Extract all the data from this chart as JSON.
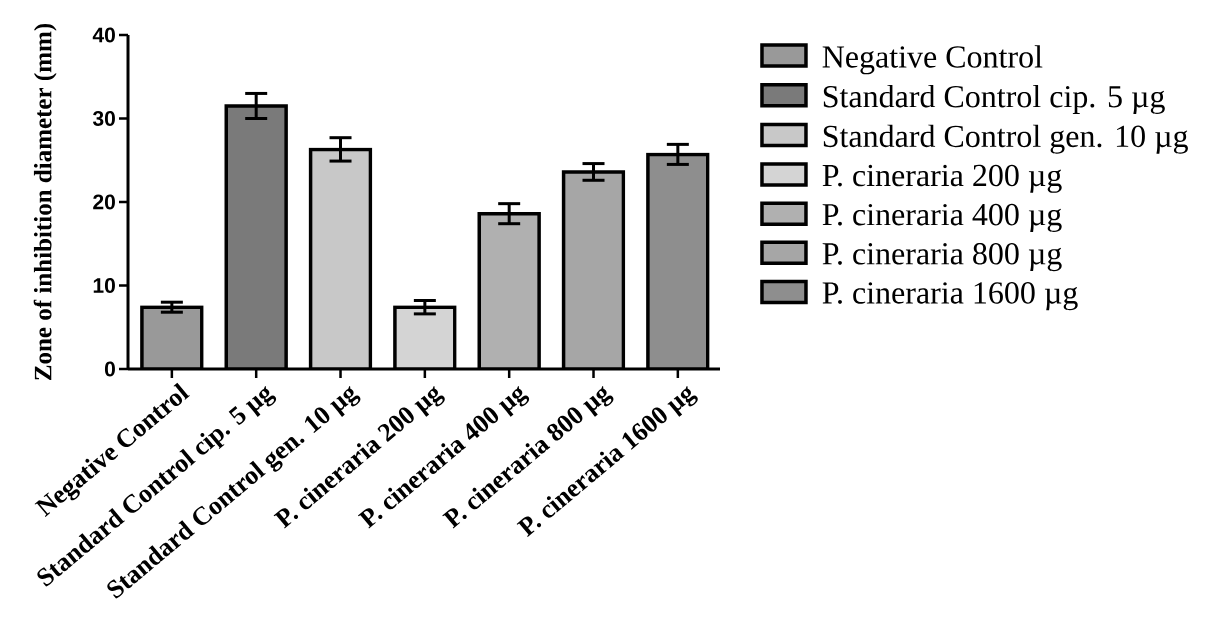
{
  "chart_data": {
    "type": "bar",
    "ylabel": "Zone of inhibition diameter (mm)",
    "categories": [
      "Negative Control",
      "Standard Control cip. 5 µg",
      "Standard Control gen. 10 µg",
      "P. cineraria 200 µg",
      "P. cineraria 400 µg",
      "P. cineraria 800 µg",
      "P. cineraria 1600 µg"
    ],
    "series": [
      {
        "name": "Negative Control",
        "color": "#999999",
        "values": [
          7.4,
          null,
          null,
          null,
          null,
          null,
          null
        ],
        "errors": [
          0.6,
          null,
          null,
          null,
          null,
          null,
          null
        ]
      },
      {
        "name": "Standard Control cip. 5 µg",
        "color": "#7a7a7a",
        "values": [
          null,
          31.5,
          null,
          null,
          null,
          null,
          null
        ],
        "errors": [
          null,
          1.5,
          null,
          null,
          null,
          null,
          null
        ]
      },
      {
        "name": "Standard Control gen. 10 µg",
        "color": "#c8c8c8",
        "values": [
          null,
          null,
          26.3,
          null,
          null,
          null,
          null
        ],
        "errors": [
          null,
          null,
          1.4,
          null,
          null,
          null,
          null
        ]
      },
      {
        "name": "P. cineraria 200 µg",
        "color": "#d4d4d4",
        "values": [
          null,
          null,
          null,
          7.4,
          null,
          null,
          null
        ],
        "errors": [
          null,
          null,
          null,
          0.8,
          null,
          null,
          null
        ]
      },
      {
        "name": "P. cineraria 400 µg",
        "color": "#b0b0b0",
        "values": [
          null,
          null,
          null,
          null,
          18.6,
          null,
          null
        ],
        "errors": [
          null,
          null,
          null,
          null,
          1.2,
          null,
          null
        ]
      },
      {
        "name": "P. cineraria 800 µg",
        "color": "#a6a6a6",
        "values": [
          null,
          null,
          null,
          null,
          null,
          23.6,
          null
        ],
        "errors": [
          null,
          null,
          null,
          null,
          null,
          1.0,
          null
        ]
      },
      {
        "name": "P. cineraria 1600 µg",
        "color": "#8e8e8e",
        "values": [
          null,
          null,
          null,
          null,
          null,
          null,
          25.7
        ],
        "errors": [
          null,
          null,
          null,
          null,
          null,
          null,
          1.2
        ]
      }
    ],
    "ylim": [
      0,
      40
    ],
    "yticks": [
      0,
      10,
      20,
      30,
      40
    ],
    "legend": "right"
  }
}
